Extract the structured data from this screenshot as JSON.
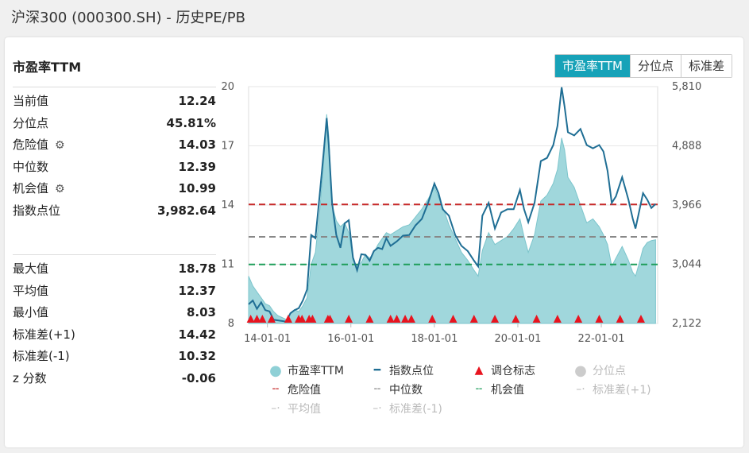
{
  "page_title": "沪深300 (000300.SH) - 历史PE/PB",
  "panel_title": "市盈率TTM",
  "tabs": [
    "市盈率TTM",
    "分位点",
    "标准差"
  ],
  "stats_top": [
    {
      "label": "当前值",
      "value": "12.24",
      "gear": false
    },
    {
      "label": "分位点",
      "value": "45.81%",
      "gear": false
    },
    {
      "label": "危险值",
      "value": "14.03",
      "gear": true
    },
    {
      "label": "中位数",
      "value": "12.39",
      "gear": false
    },
    {
      "label": "机会值",
      "value": "10.99",
      "gear": true
    },
    {
      "label": "指数点位",
      "value": "3,982.64",
      "gear": false
    }
  ],
  "stats_bottom": [
    {
      "label": "最大值",
      "value": "18.78"
    },
    {
      "label": "平均值",
      "value": "12.37"
    },
    {
      "label": "最小值",
      "value": "8.03"
    },
    {
      "label": "标准差(+1)",
      "value": "14.42"
    },
    {
      "label": "标准差(-1)",
      "value": "10.32"
    },
    {
      "label": "z 分数",
      "value": "-0.06"
    }
  ],
  "legend": [
    {
      "label": "市盈率TTM",
      "symbol": "circle",
      "color": "#8fd0d6",
      "active": true
    },
    {
      "label": "指数点位",
      "symbol": "line",
      "color": "#1f6e94",
      "active": true
    },
    {
      "label": "调仓标志",
      "symbol": "triangle",
      "color": "#e8141f",
      "active": true
    },
    {
      "label": "分位点",
      "symbol": "circle",
      "color": "#cccccc",
      "active": false
    },
    {
      "label": "危险值",
      "symbol": "dash",
      "color": "#c62828",
      "active": true
    },
    {
      "label": "中位数",
      "symbol": "dash",
      "color": "#888888",
      "active": true
    },
    {
      "label": "机会值",
      "symbol": "dash",
      "color": "#1e9e5a",
      "active": true
    },
    {
      "label": "标准差(+1)",
      "symbol": "dashdot",
      "color": "#cccccc",
      "active": false
    },
    {
      "label": "平均值",
      "symbol": "dashdot",
      "color": "#cccccc",
      "active": false
    },
    {
      "label": "标准差(-1)",
      "symbol": "dashdot",
      "color": "#cccccc",
      "active": false
    }
  ],
  "colors": {
    "accent": "#17a2b8",
    "pe_fill": "#8fd0d6",
    "index_line": "#1f6e94",
    "marker": "#e8141f"
  },
  "chart_data": {
    "type": "area",
    "x_ticks": [
      "14-01-01",
      "16-01-01",
      "18-01-01",
      "20-01-01",
      "22-01-01"
    ],
    "x_tick_years": [
      2014,
      2016,
      2018,
      2020,
      2022
    ],
    "x_range": [
      2013.55,
      2023.35
    ],
    "y_left": {
      "ticks": [
        8,
        11,
        14,
        17,
        20
      ],
      "range": [
        8,
        20
      ]
    },
    "y_right": {
      "ticks_labels": [
        "2,122",
        "3,044",
        "3,966",
        "4,888",
        "5,810"
      ],
      "ticks": [
        2122,
        3044,
        3966,
        4888,
        5810
      ],
      "range": [
        2122,
        5810
      ]
    },
    "reference_lines": [
      {
        "name": "危险值",
        "value": 14.03,
        "color": "#c62828"
      },
      {
        "name": "中位数",
        "value": 12.39,
        "color": "#888888"
      },
      {
        "name": "机会值",
        "value": 10.99,
        "color": "#1e9e5a"
      }
    ],
    "pe_series": {
      "name": "市盈率TTM",
      "points": [
        [
          2013.55,
          10.4
        ],
        [
          2013.65,
          9.9
        ],
        [
          2013.75,
          9.6
        ],
        [
          2013.85,
          9.3
        ],
        [
          2013.95,
          9.0
        ],
        [
          2014.05,
          8.9
        ],
        [
          2014.15,
          8.6
        ],
        [
          2014.25,
          8.4
        ],
        [
          2014.35,
          8.3
        ],
        [
          2014.45,
          8.2
        ],
        [
          2014.55,
          8.5
        ],
        [
          2014.65,
          8.7
        ],
        [
          2014.75,
          8.6
        ],
        [
          2014.85,
          8.9
        ],
        [
          2014.95,
          9.3
        ],
        [
          2015.05,
          11.0
        ],
        [
          2015.15,
          11.6
        ],
        [
          2015.25,
          13.6
        ],
        [
          2015.35,
          16.2
        ],
        [
          2015.42,
          18.6
        ],
        [
          2015.47,
          17.5
        ],
        [
          2015.55,
          14.0
        ],
        [
          2015.65,
          13.2
        ],
        [
          2015.75,
          12.9
        ],
        [
          2015.85,
          13.1
        ],
        [
          2015.95,
          12.6
        ],
        [
          2016.05,
          11.2
        ],
        [
          2016.15,
          10.9
        ],
        [
          2016.25,
          11.1
        ],
        [
          2016.35,
          11.5
        ],
        [
          2016.45,
          11.3
        ],
        [
          2016.55,
          11.6
        ],
        [
          2016.65,
          12.0
        ],
        [
          2016.75,
          12.3
        ],
        [
          2016.85,
          12.6
        ],
        [
          2016.95,
          12.5
        ],
        [
          2017.1,
          12.7
        ],
        [
          2017.25,
          12.9
        ],
        [
          2017.4,
          13.0
        ],
        [
          2017.55,
          13.4
        ],
        [
          2017.7,
          13.8
        ],
        [
          2017.85,
          14.3
        ],
        [
          2018.0,
          14.9
        ],
        [
          2018.1,
          14.4
        ],
        [
          2018.2,
          13.9
        ],
        [
          2018.35,
          13.0
        ],
        [
          2018.5,
          12.3
        ],
        [
          2018.65,
          11.6
        ],
        [
          2018.8,
          11.2
        ],
        [
          2018.95,
          10.7
        ],
        [
          2019.05,
          10.4
        ],
        [
          2019.15,
          11.7
        ],
        [
          2019.3,
          12.6
        ],
        [
          2019.45,
          12.0
        ],
        [
          2019.6,
          12.2
        ],
        [
          2019.75,
          12.4
        ],
        [
          2019.9,
          12.8
        ],
        [
          2020.05,
          13.3
        ],
        [
          2020.15,
          12.4
        ],
        [
          2020.25,
          11.6
        ],
        [
          2020.4,
          12.5
        ],
        [
          2020.55,
          14.2
        ],
        [
          2020.7,
          14.5
        ],
        [
          2020.85,
          15.1
        ],
        [
          2020.95,
          15.8
        ],
        [
          2021.05,
          17.4
        ],
        [
          2021.12,
          16.8
        ],
        [
          2021.2,
          15.4
        ],
        [
          2021.35,
          14.9
        ],
        [
          2021.5,
          14.0
        ],
        [
          2021.65,
          13.1
        ],
        [
          2021.8,
          13.3
        ],
        [
          2021.95,
          12.9
        ],
        [
          2022.05,
          12.5
        ],
        [
          2022.15,
          12.0
        ],
        [
          2022.25,
          10.9
        ],
        [
          2022.35,
          11.3
        ],
        [
          2022.5,
          11.9
        ],
        [
          2022.65,
          11.2
        ],
        [
          2022.75,
          10.6
        ],
        [
          2022.82,
          10.4
        ],
        [
          2022.9,
          11.0
        ],
        [
          2023.0,
          11.8
        ],
        [
          2023.1,
          12.1
        ],
        [
          2023.2,
          12.2
        ],
        [
          2023.3,
          12.24
        ]
      ]
    },
    "index_series": {
      "name": "指数点位",
      "points": [
        [
          2013.55,
          2420
        ],
        [
          2013.65,
          2480
        ],
        [
          2013.75,
          2350
        ],
        [
          2013.85,
          2450
        ],
        [
          2013.95,
          2330
        ],
        [
          2014.05,
          2310
        ],
        [
          2014.15,
          2180
        ],
        [
          2014.25,
          2170
        ],
        [
          2014.35,
          2160
        ],
        [
          2014.45,
          2150
        ],
        [
          2014.55,
          2280
        ],
        [
          2014.65,
          2330
        ],
        [
          2014.75,
          2360
        ],
        [
          2014.85,
          2480
        ],
        [
          2014.95,
          2650
        ],
        [
          2015.05,
          3500
        ],
        [
          2015.15,
          3450
        ],
        [
          2015.25,
          4100
        ],
        [
          2015.35,
          4800
        ],
        [
          2015.42,
          5320
        ],
        [
          2015.47,
          4900
        ],
        [
          2015.55,
          4000
        ],
        [
          2015.65,
          3500
        ],
        [
          2015.75,
          3300
        ],
        [
          2015.85,
          3680
        ],
        [
          2015.95,
          3730
        ],
        [
          2016.05,
          3150
        ],
        [
          2016.15,
          2950
        ],
        [
          2016.25,
          3200
        ],
        [
          2016.35,
          3190
        ],
        [
          2016.45,
          3100
        ],
        [
          2016.55,
          3250
        ],
        [
          2016.65,
          3300
        ],
        [
          2016.75,
          3280
        ],
        [
          2016.85,
          3450
        ],
        [
          2016.95,
          3330
        ],
        [
          2017.1,
          3400
        ],
        [
          2017.25,
          3490
        ],
        [
          2017.4,
          3500
        ],
        [
          2017.55,
          3650
        ],
        [
          2017.7,
          3750
        ],
        [
          2017.85,
          4000
        ],
        [
          2018.0,
          4300
        ],
        [
          2018.1,
          4150
        ],
        [
          2018.2,
          3900
        ],
        [
          2018.35,
          3800
        ],
        [
          2018.5,
          3500
        ],
        [
          2018.65,
          3330
        ],
        [
          2018.8,
          3250
        ],
        [
          2018.95,
          3100
        ],
        [
          2019.05,
          3010
        ],
        [
          2019.15,
          3800
        ],
        [
          2019.3,
          4000
        ],
        [
          2019.45,
          3600
        ],
        [
          2019.6,
          3850
        ],
        [
          2019.75,
          3900
        ],
        [
          2019.9,
          3900
        ],
        [
          2020.05,
          4200
        ],
        [
          2020.15,
          3900
        ],
        [
          2020.25,
          3700
        ],
        [
          2020.4,
          4000
        ],
        [
          2020.55,
          4650
        ],
        [
          2020.7,
          4700
        ],
        [
          2020.85,
          4900
        ],
        [
          2020.95,
          5200
        ],
        [
          2021.05,
          5800
        ],
        [
          2021.12,
          5500
        ],
        [
          2021.2,
          5100
        ],
        [
          2021.35,
          5050
        ],
        [
          2021.5,
          5150
        ],
        [
          2021.65,
          4900
        ],
        [
          2021.8,
          4850
        ],
        [
          2021.95,
          4900
        ],
        [
          2022.05,
          4800
        ],
        [
          2022.15,
          4500
        ],
        [
          2022.25,
          4000
        ],
        [
          2022.35,
          4100
        ],
        [
          2022.5,
          4400
        ],
        [
          2022.65,
          4050
        ],
        [
          2022.75,
          3760
        ],
        [
          2022.82,
          3600
        ],
        [
          2022.9,
          3850
        ],
        [
          2023.0,
          4150
        ],
        [
          2023.1,
          4050
        ],
        [
          2023.2,
          3920
        ],
        [
          2023.3,
          3982.64
        ]
      ]
    },
    "rebalance_markers": [
      2013.6,
      2013.75,
      2013.88,
      2014.1,
      2014.5,
      2014.75,
      2014.83,
      2015.0,
      2015.08,
      2015.45,
      2015.5,
      2015.95,
      2016.45,
      2016.95,
      2017.1,
      2017.3,
      2017.45,
      2017.95,
      2018.45,
      2018.95,
      2019.45,
      2019.95,
      2020.45,
      2020.95,
      2021.45,
      2021.95,
      2022.45,
      2022.95
    ]
  }
}
